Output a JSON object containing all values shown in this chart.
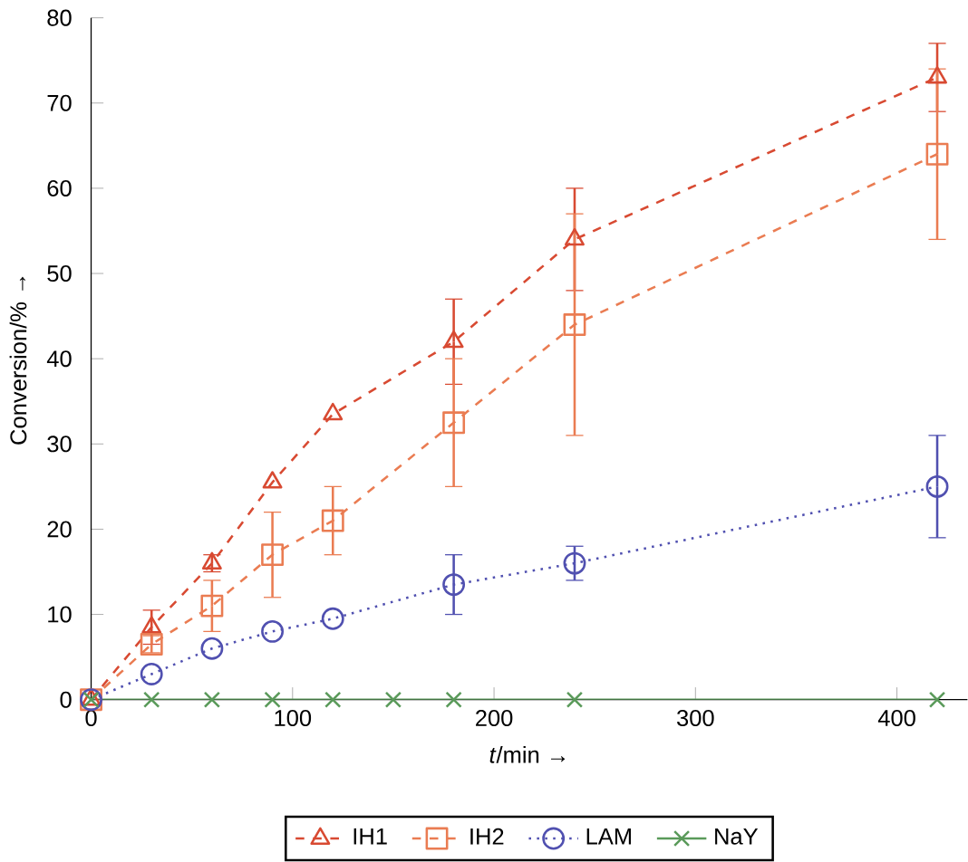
{
  "chart_data": {
    "type": "line",
    "xlabel": "*t*/min →",
    "ylabel": "Conversion/% →",
    "x": [
      0,
      30,
      60,
      90,
      120,
      180,
      240,
      420
    ],
    "series": [
      {
        "name": "IH1",
        "color": "#d84a32",
        "marker": "triangle",
        "line_style": "dashed",
        "values": [
          0,
          8.5,
          16,
          25.5,
          33.5,
          42,
          54,
          73
        ],
        "errors": [
          null,
          2,
          1,
          null,
          null,
          5,
          6,
          4
        ]
      },
      {
        "name": "IH2",
        "color": "#ea7c52",
        "marker": "square",
        "line_style": "dashed",
        "values": [
          0,
          6.5,
          11,
          17,
          21,
          32.5,
          44,
          64
        ],
        "errors": [
          null,
          1,
          3,
          5,
          4,
          7.5,
          13,
          10
        ]
      },
      {
        "name": "LAM",
        "color": "#5050b0",
        "marker": "circle",
        "line_style": "dotted",
        "values": [
          0,
          3,
          6,
          8,
          9.5,
          13.5,
          16,
          25
        ],
        "errors": [
          null,
          null,
          null,
          null,
          null,
          3.5,
          2,
          6
        ]
      },
      {
        "name": "NaY",
        "color": "#5a9a5a",
        "marker": "cross",
        "line_style": "solid",
        "x": [
          0,
          30,
          60,
          90,
          120,
          150,
          180,
          240,
          420
        ],
        "values": [
          0,
          0,
          0,
          0,
          0,
          0,
          0,
          0,
          0
        ]
      }
    ],
    "xlim": [
      0,
      435
    ],
    "ylim": [
      0,
      80
    ],
    "xticks": [
      0,
      100,
      200,
      300,
      400
    ],
    "yticks": [
      0,
      10,
      20,
      30,
      40,
      50,
      60,
      70,
      80
    ],
    "legend": "bottom",
    "grid": false
  }
}
